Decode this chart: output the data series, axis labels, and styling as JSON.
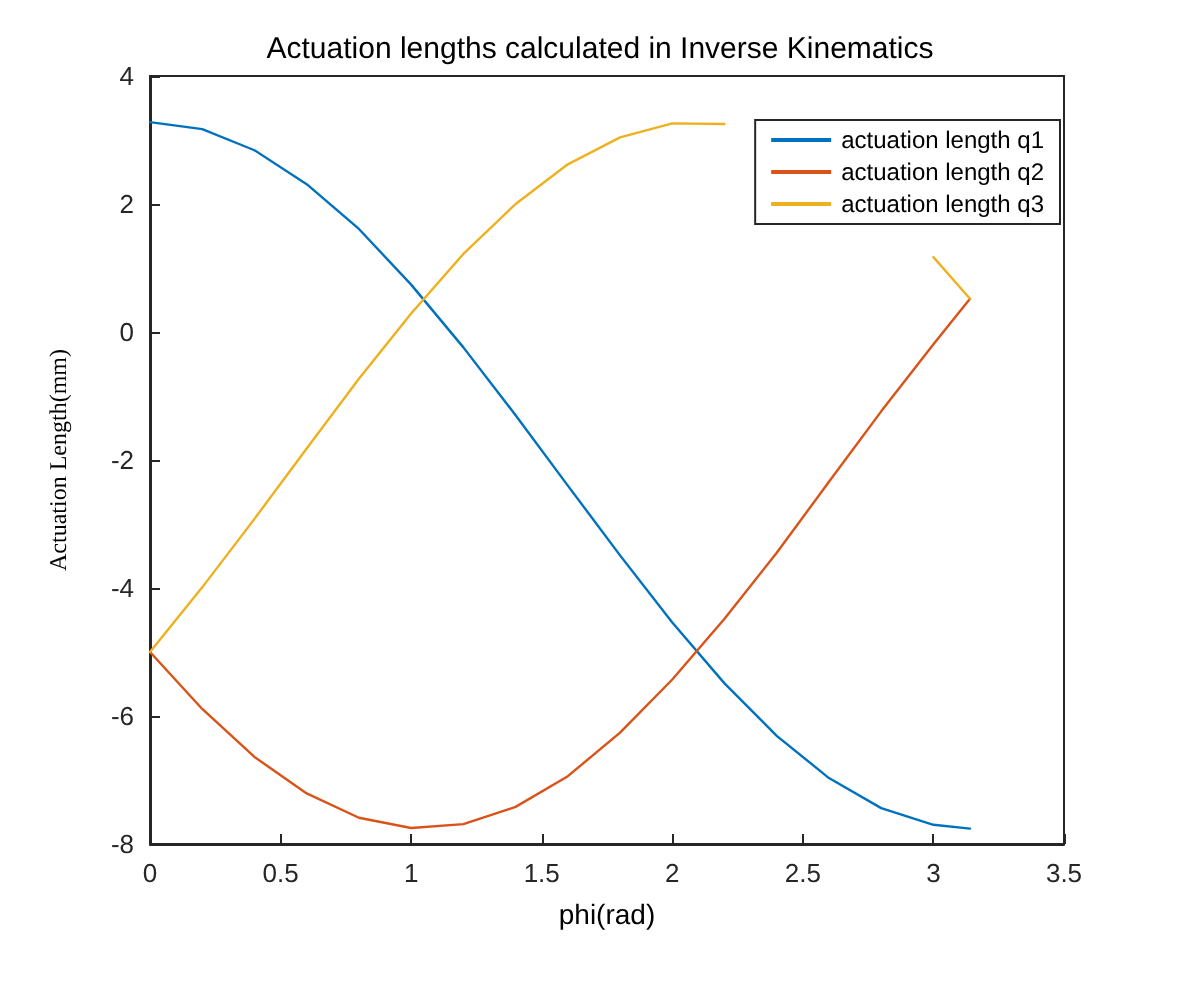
{
  "chart_data": {
    "type": "line",
    "title": "Actuation lengths calculated in Inverse Kinematics",
    "xlabel": "phi(rad)",
    "ylabel": "Actuation Length(mm)",
    "x": [
      0,
      0.2,
      0.4,
      0.6,
      0.8,
      1.0,
      1.2,
      1.4,
      1.6,
      1.8,
      2.0,
      2.2,
      2.4,
      2.6,
      2.8,
      3.0,
      3.14
    ],
    "series": [
      {
        "name": "actuation length q1",
        "color": "#0072bd",
        "values": [
          3.28,
          3.17,
          2.84,
          2.31,
          1.61,
          0.74,
          -0.24,
          -1.3,
          -2.4,
          -3.49,
          -4.54,
          -5.49,
          -6.31,
          -6.97,
          -7.44,
          -7.7,
          -7.76
        ]
      },
      {
        "name": "actuation length q2",
        "color": "#d95319",
        "values": [
          -5.0,
          -5.89,
          -6.64,
          -7.21,
          -7.59,
          -7.75,
          -7.69,
          -7.42,
          -6.94,
          -6.26,
          -5.43,
          -4.48,
          -3.45,
          -2.34,
          -1.24,
          -0.19,
          0.52
        ]
      },
      {
        "name": "actuation length q3",
        "color": "#edb120",
        "values": [
          -5.0,
          -3.99,
          -2.92,
          -1.82,
          -0.73,
          0.29,
          1.22,
          2.0,
          2.62,
          3.04,
          3.26,
          3.25,
          null,
          null,
          null,
          1.17,
          0.52
        ]
      }
    ],
    "xlim": [
      0,
      3.5
    ],
    "xticks": [
      0,
      0.5,
      1,
      1.5,
      2,
      2.5,
      3,
      3.5
    ],
    "ylim": [
      -8,
      4
    ],
    "yticks": [
      -8,
      -6,
      -4,
      -2,
      0,
      2,
      4
    ],
    "grid": false,
    "legend": "top right",
    "marker": "none",
    "line_style": "solid"
  }
}
